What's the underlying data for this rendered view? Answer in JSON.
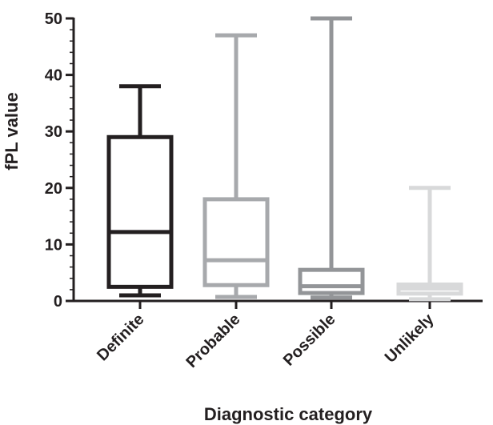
{
  "chart_data": {
    "type": "box",
    "xlabel": "Diagnostic category",
    "ylabel": "fPL value",
    "ylim": [
      0,
      50
    ],
    "y_ticks": [
      "0",
      "10",
      "20",
      "30",
      "40",
      "50"
    ],
    "y_minor_step": 2,
    "categories": [
      "Definite",
      "Probable",
      "Possible",
      "Unlikely"
    ],
    "boxes": [
      {
        "name": "Definite",
        "min": 1,
        "q1": 2.5,
        "median": 12.2,
        "q3": 29,
        "max": 38,
        "color": "#231f20"
      },
      {
        "name": "Probable",
        "min": 0.7,
        "q1": 2.8,
        "median": 7.2,
        "q3": 18,
        "max": 47,
        "color": "#a7a9ac"
      },
      {
        "name": "Possible",
        "min": 0.6,
        "q1": 1.4,
        "median": 2.6,
        "q3": 5.5,
        "max": 50,
        "color": "#939598"
      },
      {
        "name": "Unlikely",
        "min": 0.3,
        "q1": 1.3,
        "median": 2.2,
        "q3": 2.9,
        "max": 20,
        "color": "#d8d9da"
      }
    ],
    "grid": false,
    "legend": "none",
    "axis_color": "#231f20"
  }
}
